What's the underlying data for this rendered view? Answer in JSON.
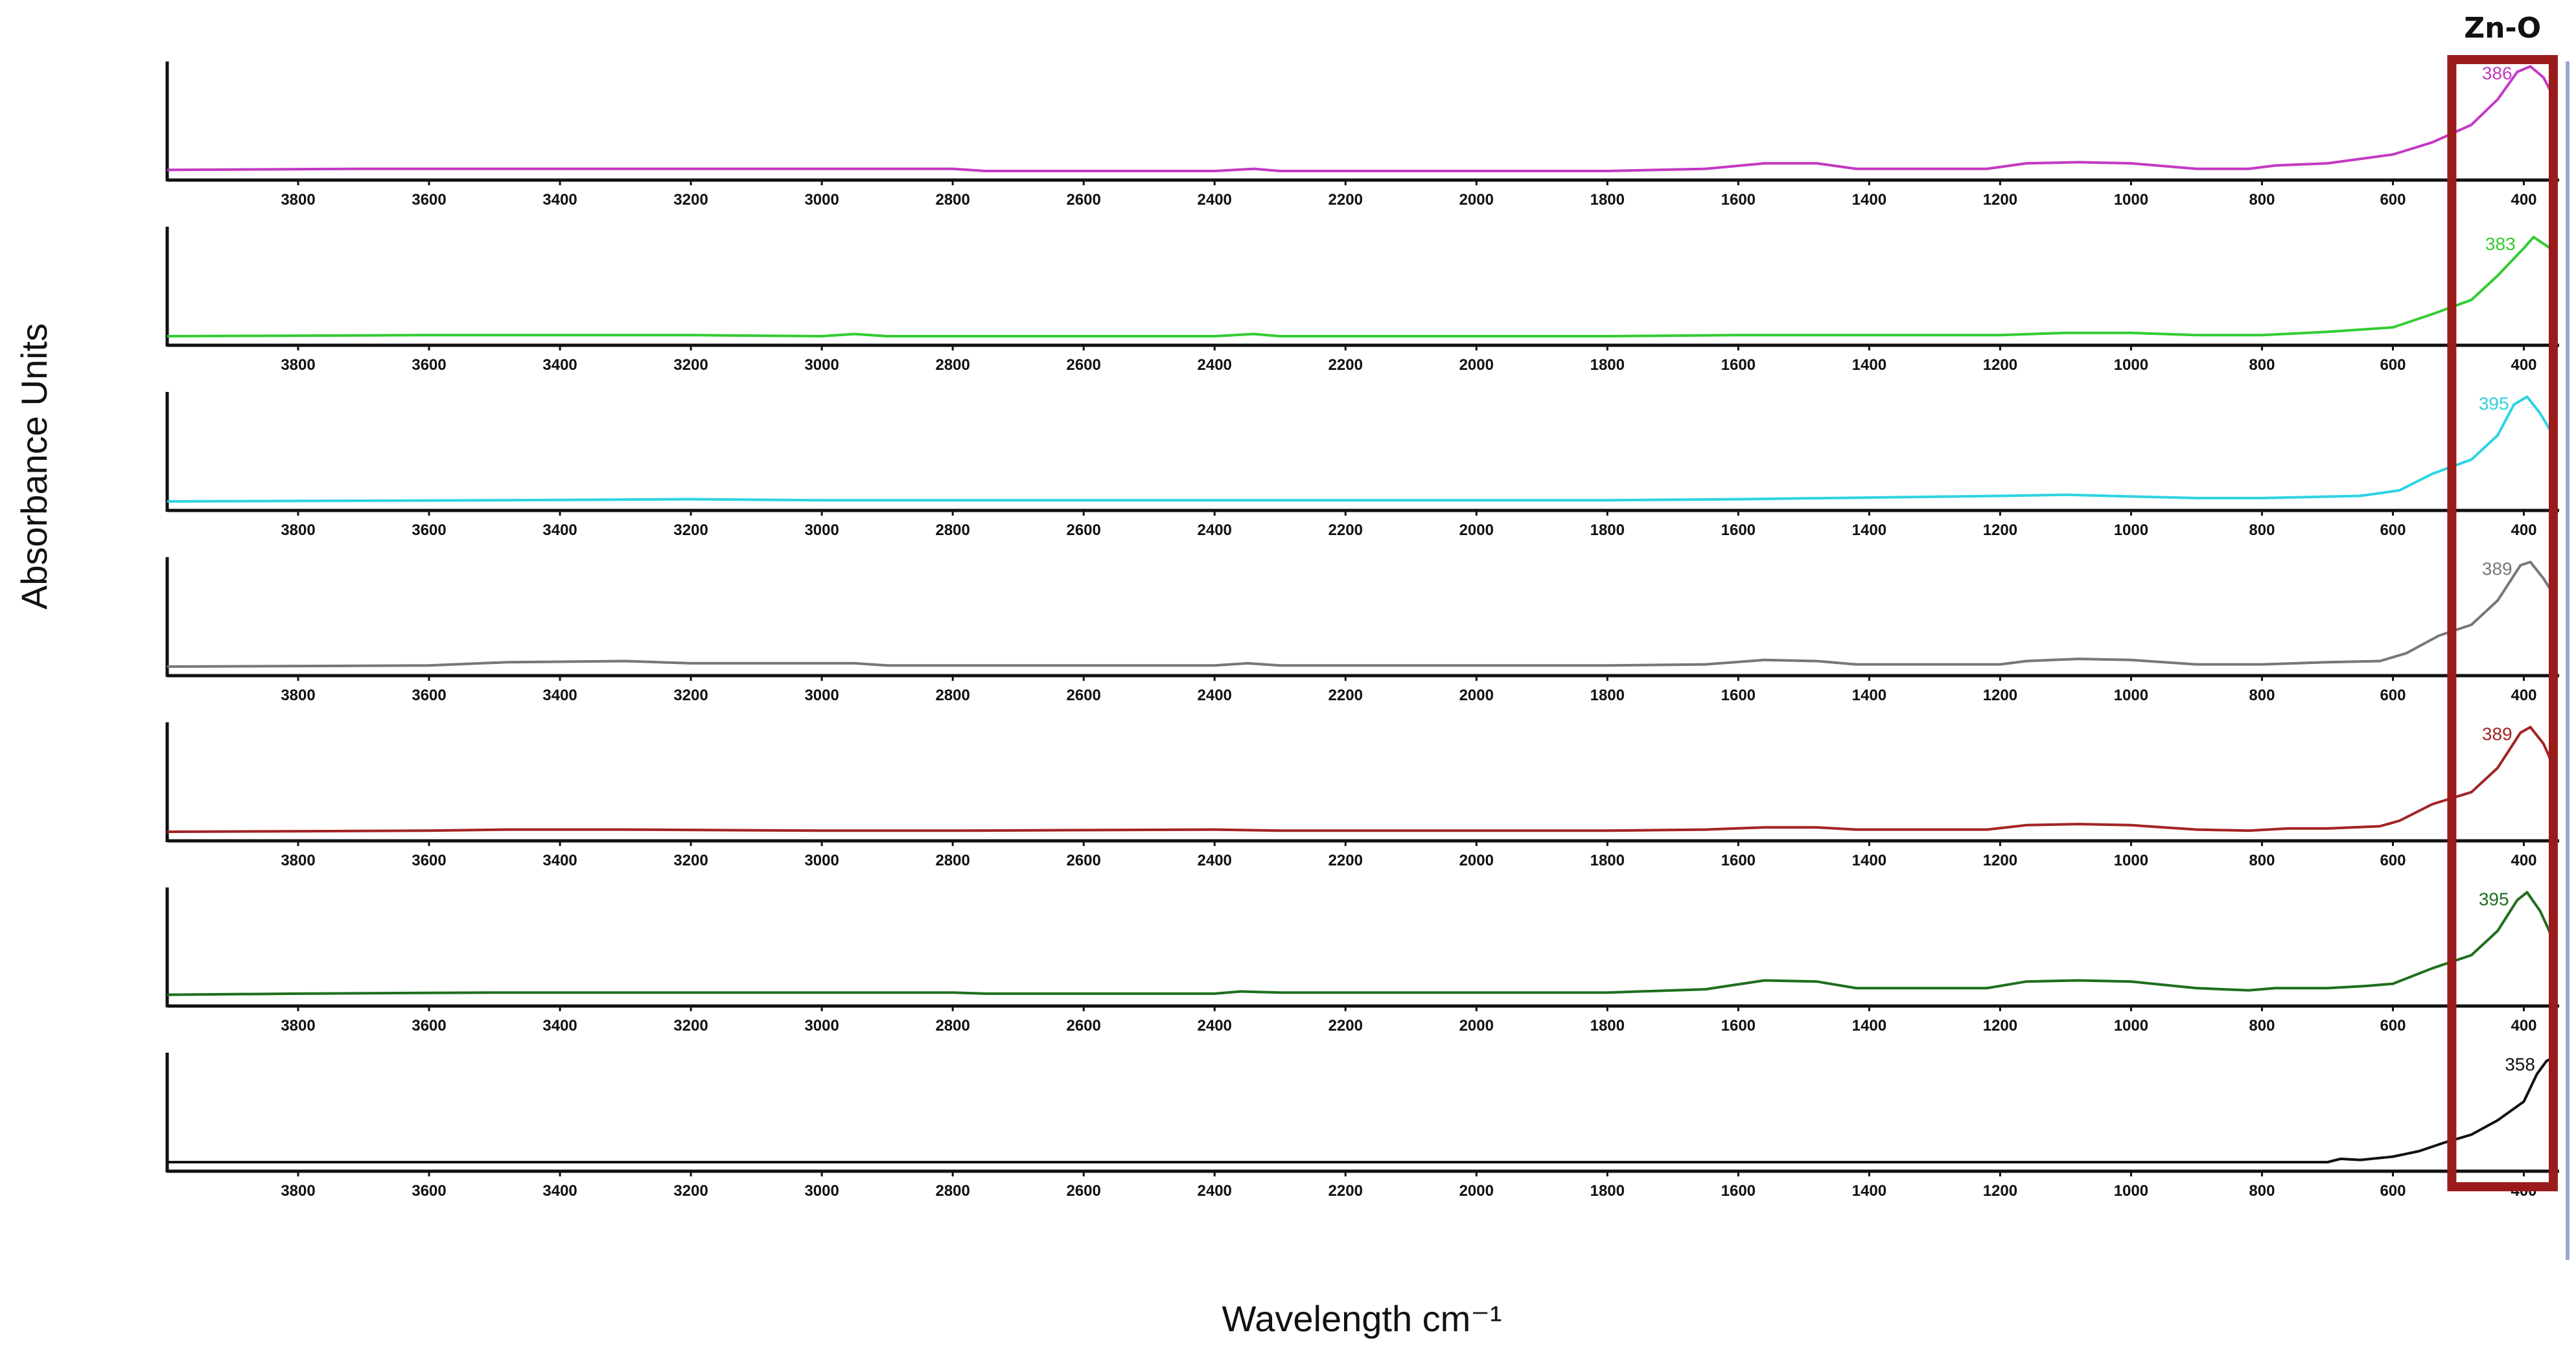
{
  "chart_data": {
    "type": "line",
    "layout": "stacked-panels",
    "xlabel": "Wavelength cm⁻¹",
    "ylabel": "Absorbance Units",
    "xlim": [
      4000,
      350
    ],
    "x_reversed": true,
    "x_ticks": [
      3800,
      3600,
      3400,
      3200,
      3000,
      2800,
      2600,
      2400,
      2200,
      2000,
      1800,
      1600,
      1400,
      1200,
      1000,
      800,
      600,
      400
    ],
    "y_units": "relative (0 = baseline, 1 = panel maximum)",
    "grid": false,
    "legend": "none",
    "highlight": {
      "label": "Zn-O",
      "x_range": [
        510,
        355
      ],
      "color": "#9b1b1b"
    },
    "series": [
      {
        "color": "#c339c3",
        "peak_label": "386",
        "points": [
          [
            4000,
            0.01
          ],
          [
            3700,
            0.02
          ],
          [
            3300,
            0.02
          ],
          [
            3000,
            0.02
          ],
          [
            2800,
            0.02
          ],
          [
            2750,
            0.0
          ],
          [
            2400,
            0.0
          ],
          [
            2340,
            0.02
          ],
          [
            2300,
            0.0
          ],
          [
            1800,
            0.0
          ],
          [
            1650,
            0.02
          ],
          [
            1560,
            0.07
          ],
          [
            1480,
            0.07
          ],
          [
            1420,
            0.02
          ],
          [
            1220,
            0.02
          ],
          [
            1160,
            0.07
          ],
          [
            1080,
            0.08
          ],
          [
            1000,
            0.07
          ],
          [
            900,
            0.02
          ],
          [
            820,
            0.02
          ],
          [
            780,
            0.05
          ],
          [
            700,
            0.07
          ],
          [
            600,
            0.15
          ],
          [
            540,
            0.26
          ],
          [
            480,
            0.42
          ],
          [
            440,
            0.65
          ],
          [
            410,
            0.9
          ],
          [
            390,
            0.95
          ],
          [
            370,
            0.85
          ],
          [
            355,
            0.68
          ]
        ]
      },
      {
        "color": "#33cc33",
        "peak_label": "383",
        "points": [
          [
            4000,
            0.0
          ],
          [
            3600,
            0.01
          ],
          [
            3200,
            0.01
          ],
          [
            3000,
            0.0
          ],
          [
            2950,
            0.02
          ],
          [
            2900,
            0.0
          ],
          [
            2400,
            0.0
          ],
          [
            2340,
            0.02
          ],
          [
            2300,
            0.0
          ],
          [
            1800,
            0.0
          ],
          [
            1600,
            0.01
          ],
          [
            1200,
            0.01
          ],
          [
            1100,
            0.03
          ],
          [
            1000,
            0.03
          ],
          [
            900,
            0.01
          ],
          [
            800,
            0.01
          ],
          [
            700,
            0.04
          ],
          [
            600,
            0.08
          ],
          [
            540,
            0.2
          ],
          [
            480,
            0.33
          ],
          [
            440,
            0.55
          ],
          [
            400,
            0.8
          ],
          [
            385,
            0.9
          ],
          [
            370,
            0.84
          ],
          [
            355,
            0.78
          ]
        ]
      },
      {
        "color": "#2ed3e0",
        "peak_label": "395",
        "points": [
          [
            4000,
            0.0
          ],
          [
            3500,
            0.01
          ],
          [
            3200,
            0.02
          ],
          [
            3000,
            0.01
          ],
          [
            2400,
            0.01
          ],
          [
            2000,
            0.01
          ],
          [
            1800,
            0.01
          ],
          [
            1600,
            0.02
          ],
          [
            1200,
            0.05
          ],
          [
            1100,
            0.06
          ],
          [
            900,
            0.03
          ],
          [
            800,
            0.03
          ],
          [
            650,
            0.05
          ],
          [
            590,
            0.1
          ],
          [
            540,
            0.25
          ],
          [
            480,
            0.38
          ],
          [
            440,
            0.6
          ],
          [
            415,
            0.88
          ],
          [
            395,
            0.95
          ],
          [
            375,
            0.8
          ],
          [
            355,
            0.6
          ]
        ]
      },
      {
        "color": "#777777",
        "peak_label": "389",
        "points": [
          [
            4000,
            0.0
          ],
          [
            3600,
            0.01
          ],
          [
            3480,
            0.04
          ],
          [
            3300,
            0.05
          ],
          [
            3200,
            0.03
          ],
          [
            2950,
            0.03
          ],
          [
            2900,
            0.01
          ],
          [
            2400,
            0.01
          ],
          [
            2350,
            0.03
          ],
          [
            2300,
            0.01
          ],
          [
            1800,
            0.01
          ],
          [
            1650,
            0.02
          ],
          [
            1560,
            0.06
          ],
          [
            1480,
            0.05
          ],
          [
            1420,
            0.02
          ],
          [
            1200,
            0.02
          ],
          [
            1160,
            0.05
          ],
          [
            1080,
            0.07
          ],
          [
            1000,
            0.06
          ],
          [
            900,
            0.02
          ],
          [
            800,
            0.02
          ],
          [
            700,
            0.04
          ],
          [
            620,
            0.05
          ],
          [
            580,
            0.12
          ],
          [
            530,
            0.28
          ],
          [
            480,
            0.38
          ],
          [
            440,
            0.6
          ],
          [
            405,
            0.92
          ],
          [
            390,
            0.95
          ],
          [
            370,
            0.8
          ],
          [
            355,
            0.66
          ]
        ]
      },
      {
        "color": "#a32424",
        "peak_label": "389",
        "points": [
          [
            4000,
            0.0
          ],
          [
            3600,
            0.01
          ],
          [
            3480,
            0.02
          ],
          [
            3300,
            0.02
          ],
          [
            3000,
            0.01
          ],
          [
            2800,
            0.01
          ],
          [
            2400,
            0.02
          ],
          [
            2300,
            0.01
          ],
          [
            1800,
            0.01
          ],
          [
            1650,
            0.02
          ],
          [
            1560,
            0.04
          ],
          [
            1480,
            0.04
          ],
          [
            1420,
            0.02
          ],
          [
            1220,
            0.02
          ],
          [
            1160,
            0.06
          ],
          [
            1080,
            0.07
          ],
          [
            1000,
            0.06
          ],
          [
            900,
            0.02
          ],
          [
            820,
            0.01
          ],
          [
            760,
            0.03
          ],
          [
            700,
            0.03
          ],
          [
            620,
            0.05
          ],
          [
            590,
            0.1
          ],
          [
            540,
            0.25
          ],
          [
            480,
            0.36
          ],
          [
            440,
            0.58
          ],
          [
            405,
            0.9
          ],
          [
            390,
            0.95
          ],
          [
            370,
            0.8
          ],
          [
            355,
            0.6
          ]
        ]
      },
      {
        "color": "#1f6e1f",
        "peak_label": "395",
        "points": [
          [
            4000,
            0.02
          ],
          [
            3800,
            0.03
          ],
          [
            3500,
            0.04
          ],
          [
            3200,
            0.04
          ],
          [
            3000,
            0.04
          ],
          [
            2800,
            0.04
          ],
          [
            2750,
            0.03
          ],
          [
            2400,
            0.03
          ],
          [
            2360,
            0.05
          ],
          [
            2300,
            0.04
          ],
          [
            1800,
            0.04
          ],
          [
            1650,
            0.07
          ],
          [
            1560,
            0.15
          ],
          [
            1480,
            0.14
          ],
          [
            1420,
            0.08
          ],
          [
            1220,
            0.08
          ],
          [
            1160,
            0.14
          ],
          [
            1080,
            0.15
          ],
          [
            1000,
            0.14
          ],
          [
            900,
            0.08
          ],
          [
            820,
            0.06
          ],
          [
            780,
            0.08
          ],
          [
            700,
            0.08
          ],
          [
            640,
            0.1
          ],
          [
            600,
            0.12
          ],
          [
            540,
            0.26
          ],
          [
            480,
            0.38
          ],
          [
            440,
            0.6
          ],
          [
            410,
            0.88
          ],
          [
            395,
            0.95
          ],
          [
            375,
            0.78
          ],
          [
            355,
            0.52
          ]
        ]
      },
      {
        "color": "#111111",
        "peak_label": "358",
        "points": [
          [
            4000,
            0.0
          ],
          [
            3000,
            0.0
          ],
          [
            2000,
            0.0
          ],
          [
            1000,
            0.0
          ],
          [
            700,
            0.0
          ],
          [
            680,
            0.03
          ],
          [
            650,
            0.02
          ],
          [
            600,
            0.05
          ],
          [
            560,
            0.1
          ],
          [
            520,
            0.18
          ],
          [
            480,
            0.25
          ],
          [
            440,
            0.38
          ],
          [
            400,
            0.55
          ],
          [
            380,
            0.8
          ],
          [
            365,
            0.92
          ],
          [
            355,
            0.95
          ]
        ]
      }
    ]
  }
}
